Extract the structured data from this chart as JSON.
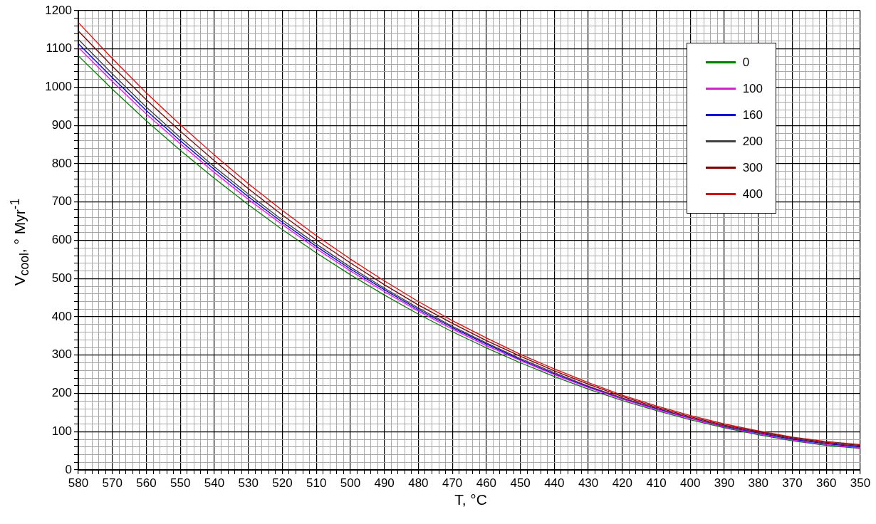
{
  "chart_data": {
    "type": "line",
    "xlabel": "T, °C",
    "ylabel": "V$_{cool}$, ° Myr$^{-1}$",
    "legend": "top right",
    "grid": true,
    "marker": "none",
    "line_style": "solid",
    "x": [
      580,
      570,
      560,
      550,
      540,
      530,
      520,
      510,
      500,
      490,
      480,
      470,
      460,
      450,
      440,
      430,
      420,
      410,
      400,
      390,
      380,
      370,
      360,
      350
    ],
    "xlim": [
      580,
      350
    ],
    "ylim": [
      0,
      1200
    ],
    "xticks": [
      580,
      {
        "value": 578,
        "label": null
      },
      {
        "value": 576,
        "label": null
      },
      {
        "value": 574,
        "label": null
      },
      {
        "value": 572,
        "label": null
      },
      570,
      {
        "value": 568,
        "label": null
      },
      {
        "value": 566,
        "label": null
      },
      {
        "value": 564,
        "label": null
      },
      {
        "value": 562,
        "label": null
      },
      560,
      {
        "value": 558,
        "label": null
      },
      {
        "value": 556,
        "label": null
      },
      {
        "value": 554,
        "label": null
      },
      {
        "value": 552,
        "label": null
      },
      550,
      {
        "value": 548,
        "label": null
      },
      {
        "value": 546,
        "label": null
      },
      {
        "value": 544,
        "label": null
      },
      {
        "value": 542,
        "label": null
      },
      540,
      {
        "value": 538,
        "label": null
      },
      {
        "value": 536,
        "label": null
      },
      {
        "value": 534,
        "label": null
      },
      {
        "value": 532,
        "label": null
      },
      530,
      {
        "value": 528,
        "label": null
      },
      {
        "value": 526,
        "label": null
      },
      {
        "value": 524,
        "label": null
      },
      {
        "value": 522,
        "label": null
      },
      520,
      {
        "value": 518,
        "label": null
      },
      {
        "value": 516,
        "label": null
      },
      {
        "value": 514,
        "label": null
      },
      {
        "value": 512,
        "label": null
      },
      510,
      {
        "value": 508,
        "label": null
      },
      {
        "value": 506,
        "label": null
      },
      {
        "value": 504,
        "label": null
      },
      {
        "value": 502,
        "label": null
      },
      500,
      {
        "value": 498,
        "label": null
      },
      {
        "value": 496,
        "label": null
      },
      {
        "value": 494,
        "label": null
      },
      {
        "value": 492,
        "label": null
      },
      490,
      {
        "value": 488,
        "label": null
      },
      {
        "value": 486,
        "label": null
      },
      {
        "value": 484,
        "label": null
      },
      {
        "value": 482,
        "label": null
      },
      480,
      {
        "value": 478,
        "label": null
      },
      {
        "value": 476,
        "label": null
      },
      {
        "value": 474,
        "label": null
      },
      {
        "value": 472,
        "label": null
      },
      470,
      {
        "value": 468,
        "label": null
      },
      {
        "value": 466,
        "label": null
      },
      {
        "value": 464,
        "label": null
      },
      {
        "value": 462,
        "label": null
      },
      460,
      {
        "value": 458,
        "label": null
      },
      {
        "value": 456,
        "label": null
      },
      {
        "value": 454,
        "label": null
      },
      {
        "value": 452,
        "label": null
      },
      450,
      {
        "value": 448,
        "label": null
      },
      {
        "value": 446,
        "label": null
      },
      {
        "value": 444,
        "label": null
      },
      {
        "value": 442,
        "label": null
      },
      440,
      {
        "value": 438,
        "label": null
      },
      {
        "value": 436,
        "label": null
      },
      {
        "value": 434,
        "label": null
      },
      {
        "value": 432,
        "label": null
      },
      430,
      {
        "value": 428,
        "label": null
      },
      {
        "value": 426,
        "label": null
      },
      {
        "value": 424,
        "label": null
      },
      {
        "value": 422,
        "label": null
      },
      420,
      {
        "value": 418,
        "label": null
      },
      {
        "value": 416,
        "label": null
      },
      {
        "value": 414,
        "label": null
      },
      {
        "value": 412,
        "label": null
      },
      410,
      {
        "value": 408,
        "label": null
      },
      {
        "value": 406,
        "label": null
      },
      {
        "value": 404,
        "label": null
      },
      {
        "value": 402,
        "label": null
      },
      400,
      {
        "value": 398,
        "label": null
      },
      {
        "value": 396,
        "label": null
      },
      {
        "value": 394,
        "label": null
      },
      {
        "value": 392,
        "label": null
      },
      390,
      {
        "value": 388,
        "label": null
      },
      {
        "value": 386,
        "label": null
      },
      {
        "value": 384,
        "label": null
      },
      {
        "value": 382,
        "label": null
      },
      380,
      {
        "value": 378,
        "label": null
      },
      {
        "value": 376,
        "label": null
      },
      {
        "value": 374,
        "label": null
      },
      {
        "value": 372,
        "label": null
      },
      370,
      {
        "value": 368,
        "label": null
      },
      {
        "value": 366,
        "label": null
      },
      {
        "value": 364,
        "label": null
      },
      {
        "value": 362,
        "label": null
      },
      360,
      {
        "value": 358,
        "label": null
      },
      {
        "value": 356,
        "label": null
      },
      {
        "value": 354,
        "label": null
      },
      {
        "value": 352,
        "label": null
      },
      350
    ],
    "yticks": [
      0,
      {
        "value": 20,
        "label": null
      },
      {
        "value": 40,
        "label": null
      },
      {
        "value": 60,
        "label": null
      },
      {
        "value": 80,
        "label": null
      },
      100,
      {
        "value": 120,
        "label": null
      },
      {
        "value": 140,
        "label": null
      },
      {
        "value": 160,
        "label": null
      },
      {
        "value": 180,
        "label": null
      },
      200,
      {
        "value": 220,
        "label": null
      },
      {
        "value": 240,
        "label": null
      },
      {
        "value": 260,
        "label": null
      },
      {
        "value": 280,
        "label": null
      },
      300,
      {
        "value": 320,
        "label": null
      },
      {
        "value": 340,
        "label": null
      },
      {
        "value": 360,
        "label": null
      },
      {
        "value": 380,
        "label": null
      },
      400,
      {
        "value": 420,
        "label": null
      },
      {
        "value": 440,
        "label": null
      },
      {
        "value": 460,
        "label": null
      },
      {
        "value": 480,
        "label": null
      },
      500,
      {
        "value": 520,
        "label": null
      },
      {
        "value": 540,
        "label": null
      },
      {
        "value": 560,
        "label": null
      },
      {
        "value": 580,
        "label": null
      },
      600,
      {
        "value": 620,
        "label": null
      },
      {
        "value": 640,
        "label": null
      },
      {
        "value": 660,
        "label": null
      },
      {
        "value": 680,
        "label": null
      },
      700,
      {
        "value": 720,
        "label": null
      },
      {
        "value": 740,
        "label": null
      },
      {
        "value": 760,
        "label": null
      },
      {
        "value": 780,
        "label": null
      },
      800,
      {
        "value": 820,
        "label": null
      },
      {
        "value": 840,
        "label": null
      },
      {
        "value": 860,
        "label": null
      },
      {
        "value": 880,
        "label": null
      },
      900,
      {
        "value": 920,
        "label": null
      },
      {
        "value": 940,
        "label": null
      },
      {
        "value": 960,
        "label": null
      },
      {
        "value": 980,
        "label": null
      },
      1000,
      {
        "value": 1020,
        "label": null
      },
      {
        "value": 1040,
        "label": null
      },
      {
        "value": 1060,
        "label": null
      },
      {
        "value": 1080,
        "label": null
      },
      1100,
      {
        "value": 1120,
        "label": null
      },
      {
        "value": 1140,
        "label": null
      },
      {
        "value": 1160,
        "label": null
      },
      {
        "value": 1180,
        "label": null
      },
      1200
    ],
    "series": [
      {
        "name": "0",
        "color": "#008000",
        "values": [
          1082,
          995,
          912,
          835,
          762,
          693,
          628,
          567,
          510,
          457,
          407,
          361,
          319,
          280,
          244,
          211,
          181,
          155,
          131,
          110,
          92,
          76,
          64,
          56
        ]
      },
      {
        "name": "100",
        "color": "#ff00ff",
        "values": [
          1104,
          1015,
          930,
          852,
          777,
          707,
          641,
          578,
          520,
          466,
          415,
          368,
          325,
          286,
          249,
          215,
          185,
          158,
          134,
          112,
          94,
          78,
          66,
          58
        ]
      },
      {
        "name": "160",
        "color": "#0000ff",
        "values": [
          1114,
          1025,
          939,
          860,
          785,
          714,
          647,
          584,
          525,
          471,
          419,
          372,
          329,
          288,
          251,
          217,
          186,
          160,
          135,
          113,
          96,
          80,
          68,
          60
        ]
      },
      {
        "name": "200",
        "color": "#404040",
        "values": [
          1125,
          1035,
          948,
          868,
          792,
          721,
          653,
          590,
          530,
          475,
          423,
          375,
          332,
          291,
          254,
          219,
          188,
          161,
          136,
          115,
          98,
          82,
          70,
          62
        ]
      },
      {
        "name": "300",
        "color": "#800000",
        "values": [
          1147,
          1055,
          967,
          885,
          808,
          735,
          666,
          601,
          541,
          484,
          431,
          383,
          338,
          297,
          259,
          224,
          192,
          164,
          139,
          117,
          100,
          84,
          72,
          64
        ]
      },
      {
        "name": "400",
        "color": "#ff0000",
        "values": [
          1169,
          1075,
          985,
          902,
          823,
          748,
          678,
          612,
          551,
          494,
          440,
          390,
          345,
          302,
          264,
          228,
          195,
          167,
          142,
          120,
          102,
          86,
          74,
          66
        ]
      }
    ]
  }
}
